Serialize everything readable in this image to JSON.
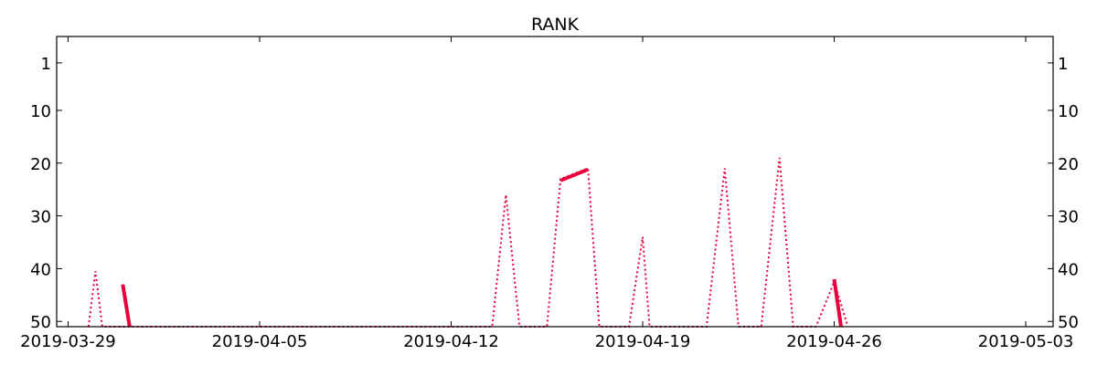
{
  "chart_data": {
    "type": "line",
    "title": "RANK",
    "xlabel": "",
    "ylabel": "",
    "x_axis": {
      "type": "date",
      "range": [
        "2019-03-28T14:00",
        "2019-05-04T00:00"
      ],
      "ticks": [
        "2019-03-29",
        "2019-04-05",
        "2019-04-12",
        "2019-04-19",
        "2019-04-26",
        "2019-05-03"
      ]
    },
    "y_axis": {
      "inverted": true,
      "range": [
        -4,
        51
      ],
      "ticks": [
        1,
        10,
        20,
        30,
        40,
        50
      ],
      "mirrored_right": true
    },
    "grid": false,
    "legend": "none",
    "color": "#e8003d",
    "series": [
      {
        "style": "dotted",
        "points": [
          [
            "2019-03-29T18:00",
            51
          ],
          [
            "2019-03-30T00:00",
            40.5
          ],
          [
            "2019-03-30T06:00",
            51
          ],
          [
            "2019-04-13T12:00",
            51
          ],
          [
            "2019-04-14T00:00",
            26
          ],
          [
            "2019-04-14T12:00",
            51
          ],
          [
            "2019-04-15T12:00",
            51
          ],
          [
            "2019-04-16T00:00",
            23
          ],
          [
            "2019-04-17T00:00",
            21
          ],
          [
            "2019-04-17T10:00",
            51
          ],
          [
            "2019-04-18T12:00",
            51
          ],
          [
            "2019-04-19T00:00",
            34
          ],
          [
            "2019-04-19T06:00",
            51
          ],
          [
            "2019-04-21T08:00",
            51
          ],
          [
            "2019-04-22T00:00",
            21
          ],
          [
            "2019-04-22T12:00",
            51
          ],
          [
            "2019-04-23T08:00",
            51
          ],
          [
            "2019-04-24T00:00",
            19
          ],
          [
            "2019-04-24T12:00",
            51
          ],
          [
            "2019-04-25T08:00",
            51
          ],
          [
            "2019-04-26T00:00",
            42.5
          ],
          [
            "2019-04-26T12:00",
            51
          ]
        ]
      },
      {
        "style": "solid",
        "segments": [
          [
            [
              "2019-03-31T00:00",
              43
            ],
            [
              "2019-03-31T06:00",
              51
            ]
          ],
          [
            [
              "2019-04-16T00:00",
              23.3
            ],
            [
              "2019-04-17T00:00",
              21.2
            ]
          ],
          [
            [
              "2019-04-26T00:00",
              42
            ],
            [
              "2019-04-26T06:00",
              51
            ]
          ]
        ]
      }
    ]
  }
}
